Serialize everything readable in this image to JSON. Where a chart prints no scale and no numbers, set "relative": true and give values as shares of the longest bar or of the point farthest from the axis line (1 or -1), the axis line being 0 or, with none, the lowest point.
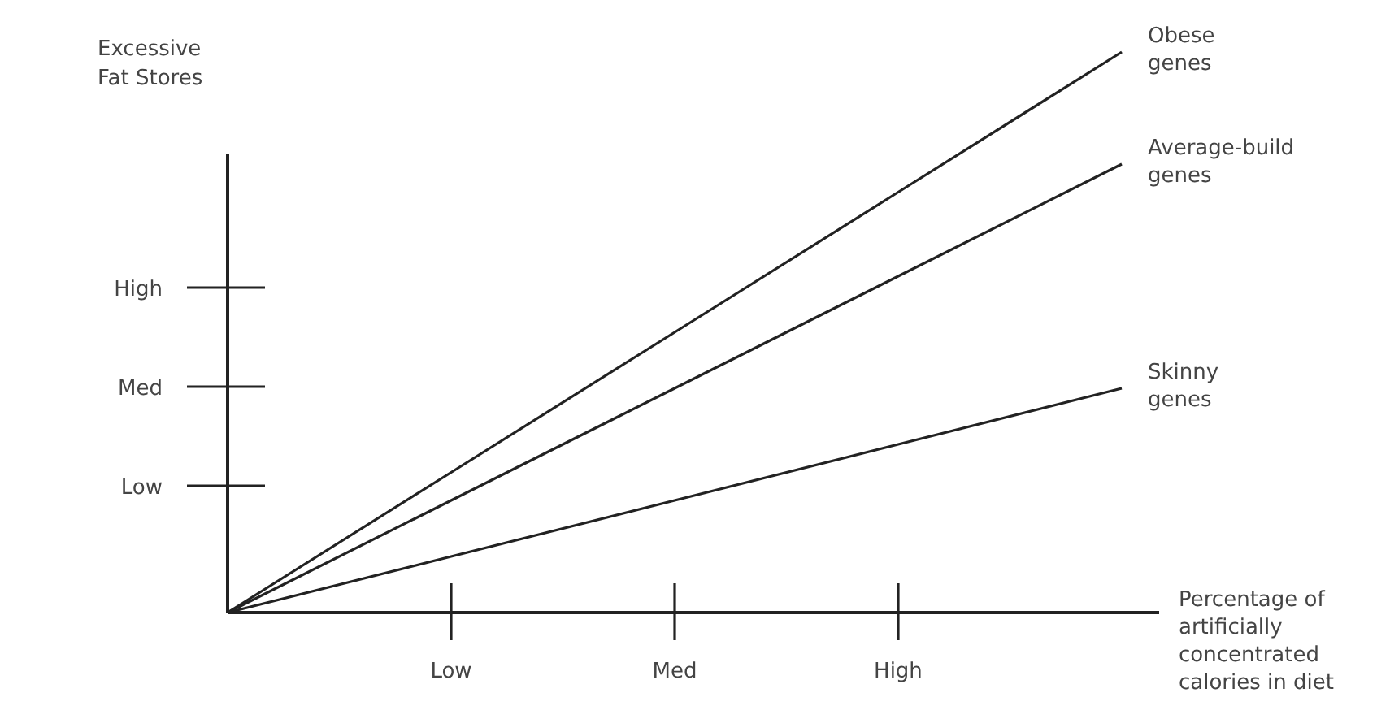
{
  "chart_data": {
    "type": "line",
    "xlabel": "Percentage of artificially concentrated calories in diet",
    "ylabel": "Excessive Fat Stores",
    "relative": true,
    "categories": [
      null,
      "Low",
      "Med",
      "High",
      null
    ],
    "annotations": [
      "Low",
      "Med",
      "High"
    ],
    "grid": false,
    "marker": "none",
    "line_style": "solid",
    "series": [
      {
        "name": "Obese genes",
        "color": "#222222",
        "values": [
          0,
          0.25,
          0.5,
          0.75,
          1
        ]
      },
      {
        "name": "Average-build genes",
        "color": "#222222",
        "values": [
          0,
          0.2,
          0.4,
          0.6,
          0.8
        ]
      },
      {
        "name": "Skinny genes",
        "color": "#222222",
        "values": [
          0,
          0.1,
          0.2,
          0.3,
          0.4
        ]
      }
    ]
  }
}
